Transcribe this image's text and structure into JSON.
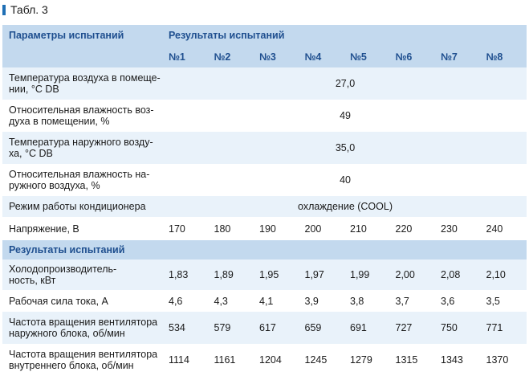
{
  "caption": "Табл. 3",
  "header": {
    "params_label": "Параметры испытаний",
    "results_label": "Результаты испытаний",
    "tests": [
      "№1",
      "№2",
      "№3",
      "№4",
      "№5",
      "№6",
      "№7",
      "№8"
    ]
  },
  "conditions": [
    {
      "label_lines": [
        "Температура воздуха в помеще-",
        "нии, °C DB"
      ],
      "value": "27,0"
    },
    {
      "label_lines": [
        "Относительная влажность воз-",
        "духа в помещении, %"
      ],
      "value": "49"
    },
    {
      "label_lines": [
        "Температура наружного возду-",
        "ха, °C DB"
      ],
      "value": "35,0"
    },
    {
      "label_lines": [
        "Относительная влажность на-",
        "ружного воздуха, %"
      ],
      "value": "40"
    },
    {
      "label_lines": [
        "Режим работы кондиционера"
      ],
      "value": "охлаждение (COOL)"
    }
  ],
  "voltage": {
    "label": "Напряжение, В",
    "values": [
      "170",
      "180",
      "190",
      "200",
      "210",
      "220",
      "230",
      "240"
    ]
  },
  "results_section_label": "Результаты испытаний",
  "results": [
    {
      "label_lines": [
        "Холодопроизводитель-",
        "ность, кВт"
      ],
      "values": [
        "1,83",
        "1,89",
        "1,95",
        "1,97",
        "1,99",
        "2,00",
        "2,08",
        "2,10"
      ]
    },
    {
      "label_lines": [
        "Рабочая сила тока, А"
      ],
      "values": [
        "4,6",
        "4,3",
        "4,1",
        "3,9",
        "3,8",
        "3,7",
        "3,6",
        "3,5"
      ]
    },
    {
      "label_lines": [
        "Частота вращения вентилятора",
        "наружного блока, об/мин"
      ],
      "values": [
        "534",
        "579",
        "617",
        "659",
        "691",
        "727",
        "750",
        "771"
      ]
    },
    {
      "label_lines": [
        "Частота вращения вентилятора",
        "внутреннего блока, об/мин"
      ],
      "values": [
        "1114",
        "1161",
        "1204",
        "1245",
        "1279",
        "1315",
        "1343",
        "1370"
      ]
    }
  ],
  "colors": {
    "accent": "#1f6fb5",
    "header_bg": "#c3d9ee",
    "row_light": "#e9f2fa",
    "header_text": "#1f4f8f"
  }
}
